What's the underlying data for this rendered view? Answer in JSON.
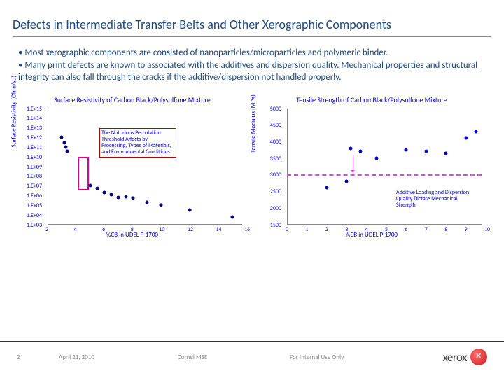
{
  "title": "Defects in Intermediate Transfer Belts and Other Xerographic Components",
  "body": {
    "bullet1": "• Most xerographic components are consisted of nanoparticles/microparticles and polymeric binder.",
    "bullet2": "• Many print defects are known to associated with the additives and dispersion quality. Mechanical properties and structural integrity can also fall through the cracks if the additive/dispersion not handled properly."
  },
  "chart_left": {
    "title": "Surface Resistivity of Carbon Black/Polysulfone Mixture",
    "ylabel": "Surface Resistivity (Ohm/sq)",
    "xlabel": "%CB in UDEL P-1700",
    "yticks": [
      "1.E+03",
      "1.E+04",
      "1.E+05",
      "1.E+06",
      "1.E+07",
      "1.E+08",
      "1.E+09",
      "1.E+10",
      "1.E+11",
      "1.E+12",
      "1.E+13",
      "1.E+14",
      "1.E+15"
    ],
    "xticks": [
      "2",
      "4",
      "6",
      "8",
      "10",
      "12",
      "14",
      "16"
    ],
    "points": [
      {
        "x": 3,
        "y": 12
      },
      {
        "x": 3.2,
        "y": 11.4
      },
      {
        "x": 3.3,
        "y": 11
      },
      {
        "x": 3.4,
        "y": 10.6
      },
      {
        "x": 5,
        "y": 7
      },
      {
        "x": 5.5,
        "y": 6.7
      },
      {
        "x": 6,
        "y": 6.3
      },
      {
        "x": 6.5,
        "y": 6.1
      },
      {
        "x": 7,
        "y": 5.8
      },
      {
        "x": 7.5,
        "y": 5.9
      },
      {
        "x": 8,
        "y": 5.7
      },
      {
        "x": 9,
        "y": 5.3
      },
      {
        "x": 10,
        "y": 5
      },
      {
        "x": 12,
        "y": 4.5
      },
      {
        "x": 15,
        "y": 3.8
      }
    ],
    "perc_box": {
      "x": 4.5,
      "y_top": 10,
      "y_bot": 6.5
    },
    "annot": "The Notorious Percolation Threshold Affects by Processing, Types of Materials, and Environmental Conditions"
  },
  "chart_right": {
    "title": "Tensile Strength of Carbon Black/Polysulfone Mixture",
    "ylabel": "Tensile Modulus (MPa)",
    "xlabel": "%CB in UDEL P-1700",
    "yticks": [
      "1500",
      "2000",
      "2500",
      "3000",
      "3500",
      "4000",
      "4500",
      "5000"
    ],
    "xticks": [
      "0",
      "1",
      "2",
      "3",
      "4",
      "5",
      "6",
      "7",
      "8",
      "9",
      "10"
    ],
    "points": [
      {
        "x": 2,
        "y": 2600
      },
      {
        "x": 3,
        "y": 2800
      },
      {
        "x": 3.2,
        "y": 3800
      },
      {
        "x": 3.7,
        "y": 3700
      },
      {
        "x": 4.5,
        "y": 3500
      },
      {
        "x": 6,
        "y": 3750
      },
      {
        "x": 7,
        "y": 3700
      },
      {
        "x": 8,
        "y": 3650
      },
      {
        "x": 9,
        "y": 4100
      },
      {
        "x": 9.5,
        "y": 4300
      }
    ],
    "dash_y": 3000,
    "annot": "Additive Loading and Dispersion Quality Dictate Mechanical Strength"
  },
  "footer": {
    "page": "2",
    "date": "April 21, 2010",
    "loc": "Cornel MSE",
    "internal": "For Internal Use Only",
    "logo": "xerox"
  },
  "colors": {
    "heading": "#1f497d",
    "chart_text": "#0000cd",
    "point": "#000080",
    "percbox": "#d08",
    "dash": "#d946ef",
    "annot_border": "#b00"
  }
}
